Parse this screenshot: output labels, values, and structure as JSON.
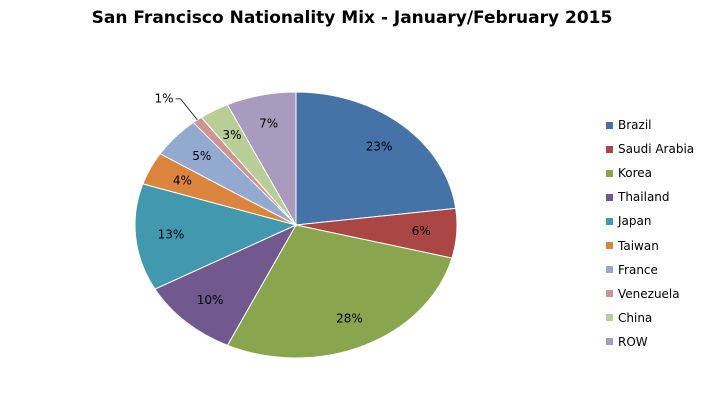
{
  "chart_data": {
    "type": "pie",
    "title": "San Francisco Nationality Mix - January/February 2015",
    "legend_position": "right",
    "categories": [
      "Brazil",
      "Saudi Arabia",
      "Korea",
      "Thailand",
      "Japan",
      "Taiwan",
      "France",
      "Venezuela",
      "China",
      "ROW"
    ],
    "values": [
      23,
      6,
      28,
      10,
      13,
      4,
      5,
      1,
      3,
      7
    ],
    "labels": [
      "23%",
      "6%",
      "28%",
      "10%",
      "13%",
      "4%",
      "5%",
      "1%",
      "3%",
      "7%"
    ],
    "colors": [
      "#4572A7",
      "#AA4643",
      "#89A54E",
      "#71588F",
      "#4198AF",
      "#DB843D",
      "#93A9CF",
      "#D19392",
      "#B9CD96",
      "#A99BBD"
    ]
  }
}
